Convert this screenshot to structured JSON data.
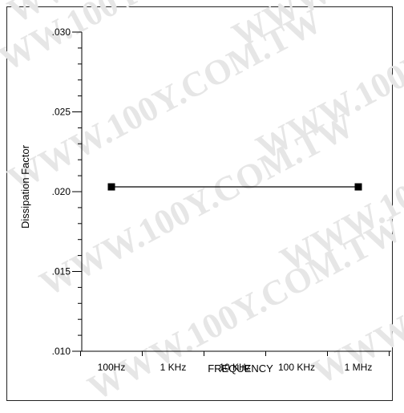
{
  "watermark": "WWW.100Y.COM.TW",
  "chart_data": {
    "type": "line",
    "xlabel": "FREQUENCY",
    "ylabel": "Dissipation Factor",
    "x_categories": [
      "100Hz",
      "1 KHz",
      "10 KHz",
      "100 KHz",
      "1 MHz"
    ],
    "y_ticks": [
      ".010",
      ".015",
      ".020",
      ".025",
      ".030"
    ],
    "ylim": [
      0.01,
      0.03
    ],
    "x_scale": "log",
    "series": [
      {
        "points": [
          {
            "x": "100Hz",
            "y": 0.0203
          },
          {
            "x": "1 MHz",
            "y": 0.0203
          }
        ],
        "marker": "square",
        "color": "#000000"
      }
    ],
    "grid": false
  }
}
